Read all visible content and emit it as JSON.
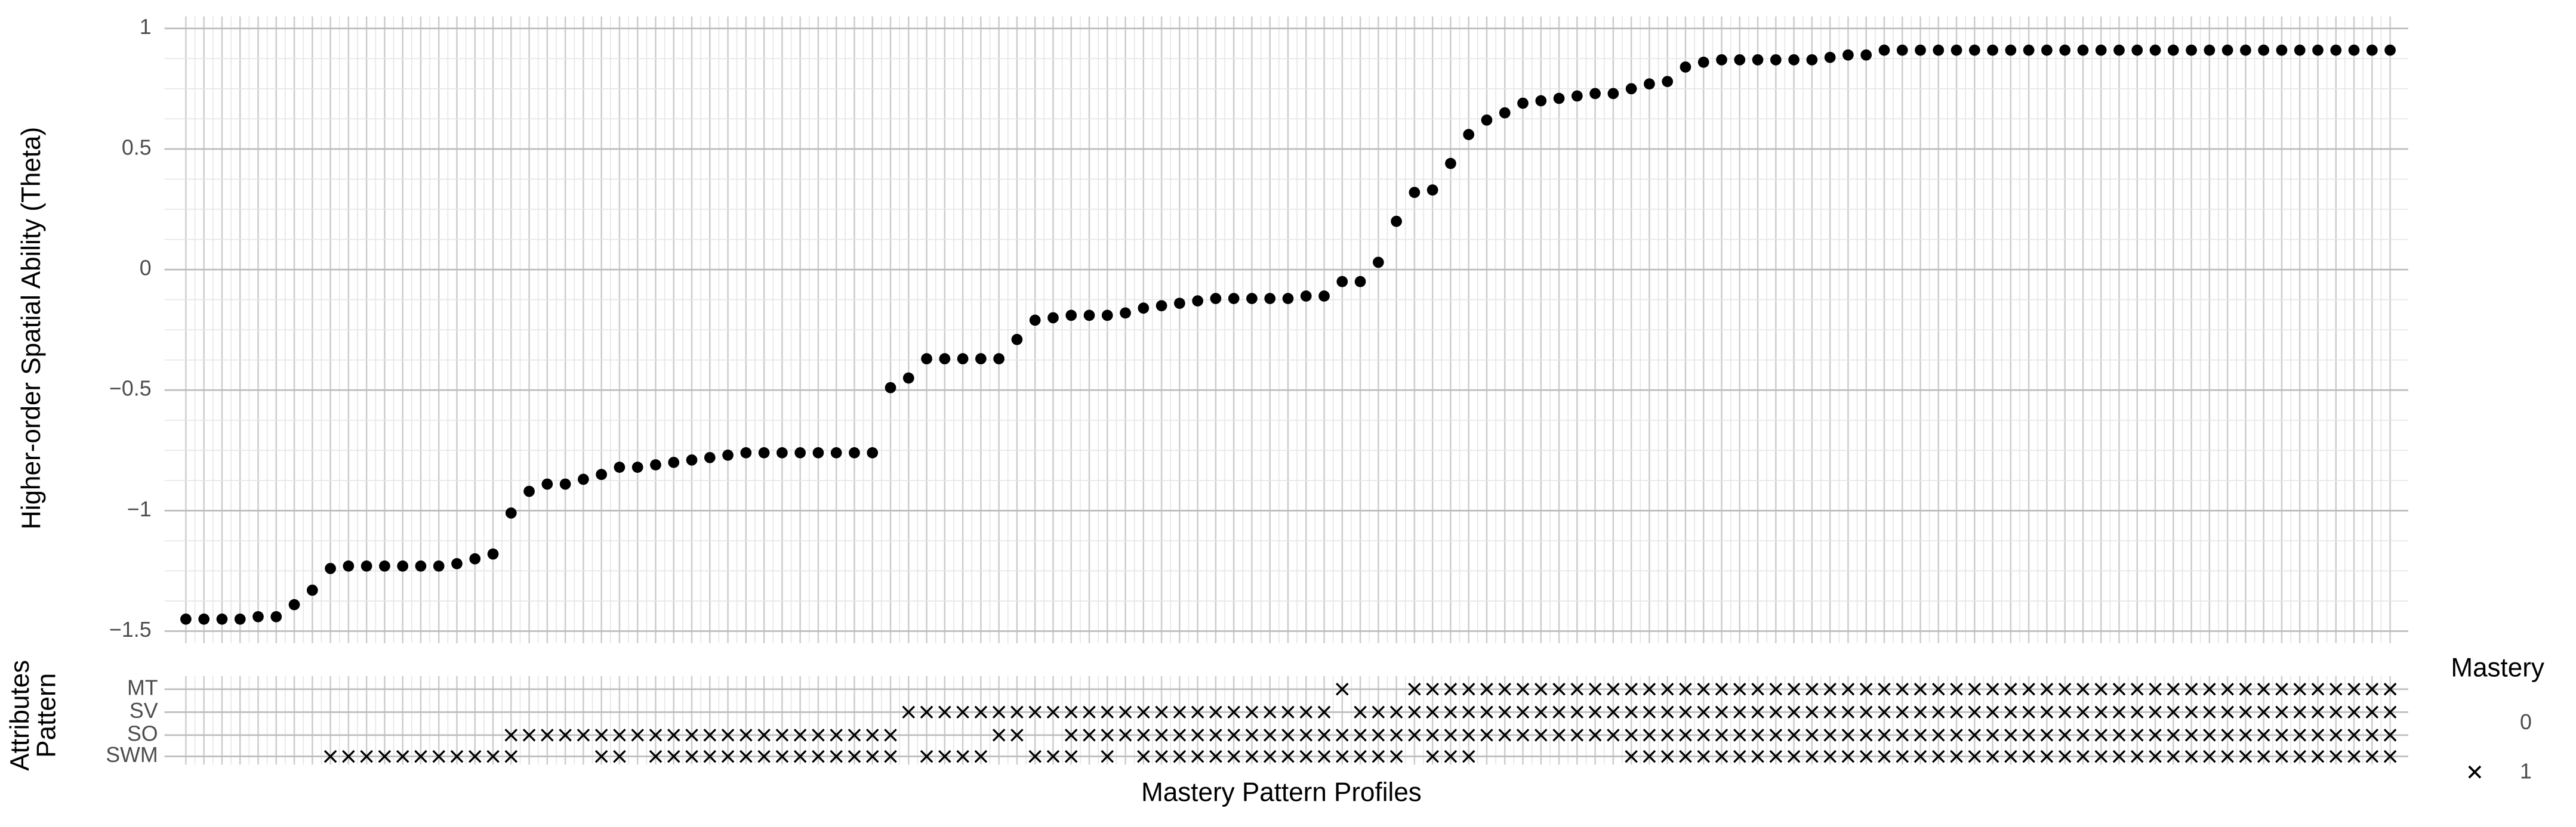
{
  "chart_data": [
    {
      "type": "scatter",
      "ylabel": "Higher-order Spatial Ability (Theta)",
      "color": "#000000",
      "ylim": [
        -1.55,
        1.05
      ],
      "yticks": [
        {
          "value": -1.5,
          "label": "−1.5"
        },
        {
          "value": -1,
          "label": "−1"
        },
        {
          "value": -0.5,
          "label": "−0.5"
        },
        0,
        0.5,
        1
      ],
      "grid": true,
      "values": [
        -1.45,
        -1.45,
        -1.45,
        -1.45,
        -1.44,
        -1.44,
        -1.39,
        -1.33,
        -1.24,
        -1.23,
        -1.23,
        -1.23,
        -1.23,
        -1.23,
        -1.23,
        -1.22,
        -1.2,
        -1.18,
        -1.01,
        -0.92,
        -0.89,
        -0.89,
        -0.87,
        -0.85,
        -0.82,
        -0.82,
        -0.81,
        -0.8,
        -0.79,
        -0.78,
        -0.77,
        -0.76,
        -0.76,
        -0.76,
        -0.76,
        -0.76,
        -0.76,
        -0.76,
        -0.76,
        -0.49,
        -0.45,
        -0.37,
        -0.37,
        -0.37,
        -0.37,
        -0.37,
        -0.29,
        -0.21,
        -0.2,
        -0.19,
        -0.19,
        -0.19,
        -0.18,
        -0.16,
        -0.15,
        -0.14,
        -0.13,
        -0.12,
        -0.12,
        -0.12,
        -0.12,
        -0.12,
        -0.11,
        -0.11,
        -0.05,
        -0.05,
        0.03,
        0.2,
        0.32,
        0.33,
        0.44,
        0.56,
        0.62,
        0.65,
        0.69,
        0.7,
        0.71,
        0.72,
        0.73,
        0.73,
        0.75,
        0.77,
        0.78,
        0.84,
        0.86,
        0.87,
        0.87,
        0.87,
        0.87,
        0.87,
        0.87,
        0.88,
        0.89,
        0.89,
        0.91,
        0.91,
        0.91,
        0.91,
        0.91,
        0.91,
        0.91,
        0.91,
        0.91,
        0.91,
        0.91,
        0.91,
        0.91,
        0.91,
        0.91,
        0.91,
        0.91,
        0.91,
        0.91,
        0.91,
        0.91,
        0.91,
        0.91,
        0.91,
        0.91,
        0.91,
        0.91,
        0.91,
        0.91
      ]
    },
    {
      "type": "matrix",
      "ylabel": "Attributes Pattern",
      "xlabel": "Mastery Pattern Profiles",
      "legend": {
        "title": "Mastery",
        "levels": [
          "0",
          "1"
        ]
      },
      "rows": [
        {
          "name": "MT",
          "values": [
            0,
            0,
            0,
            0,
            0,
            0,
            0,
            0,
            0,
            0,
            0,
            0,
            0,
            0,
            0,
            0,
            0,
            0,
            0,
            0,
            0,
            0,
            0,
            0,
            0,
            0,
            0,
            0,
            0,
            0,
            0,
            0,
            0,
            0,
            0,
            0,
            0,
            0,
            0,
            0,
            0,
            0,
            0,
            0,
            0,
            0,
            0,
            0,
            0,
            0,
            0,
            0,
            0,
            0,
            0,
            0,
            0,
            0,
            0,
            0,
            0,
            0,
            0,
            0,
            1,
            0,
            0,
            0,
            1,
            1,
            1,
            1,
            1,
            1,
            1,
            1,
            1,
            1,
            1,
            1,
            1,
            1,
            1,
            1,
            1,
            1,
            1,
            1,
            1,
            1,
            1,
            1,
            1,
            1,
            1,
            1,
            1,
            1,
            1,
            1,
            1,
            1,
            1,
            1,
            1,
            1,
            1,
            1,
            1,
            1,
            1,
            1,
            1,
            1,
            1,
            1,
            1,
            1,
            1,
            1,
            1,
            1,
            1
          ]
        },
        {
          "name": "SV",
          "values": [
            0,
            0,
            0,
            0,
            0,
            0,
            0,
            0,
            0,
            0,
            0,
            0,
            0,
            0,
            0,
            0,
            0,
            0,
            0,
            0,
            0,
            0,
            0,
            0,
            0,
            0,
            0,
            0,
            0,
            0,
            0,
            0,
            0,
            0,
            0,
            0,
            0,
            0,
            0,
            0,
            1,
            1,
            1,
            1,
            1,
            1,
            1,
            1,
            1,
            1,
            1,
            1,
            1,
            1,
            1,
            1,
            1,
            1,
            1,
            1,
            1,
            1,
            1,
            1,
            0,
            1,
            1,
            1,
            1,
            1,
            1,
            1,
            1,
            1,
            1,
            1,
            1,
            1,
            1,
            1,
            1,
            1,
            1,
            1,
            1,
            1,
            1,
            1,
            1,
            1,
            1,
            1,
            1,
            1,
            1,
            1,
            1,
            1,
            1,
            1,
            1,
            1,
            1,
            1,
            1,
            1,
            1,
            1,
            1,
            1,
            1,
            1,
            1,
            1,
            1,
            1,
            1,
            1,
            1,
            1,
            1,
            1,
            1
          ]
        },
        {
          "name": "SO",
          "values": [
            0,
            0,
            0,
            0,
            0,
            0,
            0,
            0,
            0,
            0,
            0,
            0,
            0,
            0,
            0,
            0,
            0,
            0,
            1,
            1,
            1,
            1,
            1,
            1,
            1,
            1,
            1,
            1,
            1,
            1,
            1,
            1,
            1,
            1,
            1,
            1,
            1,
            1,
            1,
            1,
            0,
            0,
            0,
            0,
            0,
            1,
            1,
            0,
            0,
            1,
            1,
            1,
            1,
            1,
            1,
            1,
            1,
            1,
            1,
            1,
            1,
            1,
            1,
            1,
            1,
            1,
            1,
            1,
            1,
            1,
            1,
            1,
            1,
            1,
            1,
            1,
            1,
            1,
            1,
            1,
            1,
            1,
            1,
            1,
            1,
            1,
            1,
            1,
            1,
            1,
            1,
            1,
            1,
            1,
            1,
            1,
            1,
            1,
            1,
            1,
            1,
            1,
            1,
            1,
            1,
            1,
            1,
            1,
            1,
            1,
            1,
            1,
            1,
            1,
            1,
            1,
            1,
            1,
            1,
            1,
            1,
            1,
            1
          ]
        },
        {
          "name": "SWM",
          "values": [
            0,
            0,
            0,
            0,
            0,
            0,
            0,
            0,
            1,
            1,
            1,
            1,
            1,
            1,
            1,
            1,
            1,
            1,
            1,
            0,
            0,
            0,
            0,
            1,
            1,
            0,
            1,
            1,
            1,
            1,
            1,
            1,
            1,
            1,
            1,
            1,
            1,
            1,
            1,
            1,
            0,
            1,
            1,
            1,
            1,
            0,
            0,
            1,
            1,
            1,
            0,
            1,
            0,
            1,
            1,
            1,
            1,
            1,
            1,
            1,
            1,
            1,
            1,
            1,
            1,
            1,
            1,
            1,
            0,
            1,
            1,
            1,
            0,
            0,
            0,
            0,
            0,
            0,
            0,
            0,
            1,
            1,
            1,
            1,
            1,
            1,
            1,
            1,
            1,
            1,
            1,
            1,
            1,
            1,
            1,
            1,
            1,
            1,
            1,
            1,
            1,
            1,
            1,
            1,
            1,
            1,
            1,
            1,
            1,
            1,
            1,
            1,
            1,
            1,
            1,
            1,
            1,
            1,
            1,
            1,
            1,
            1,
            1
          ]
        }
      ]
    }
  ]
}
